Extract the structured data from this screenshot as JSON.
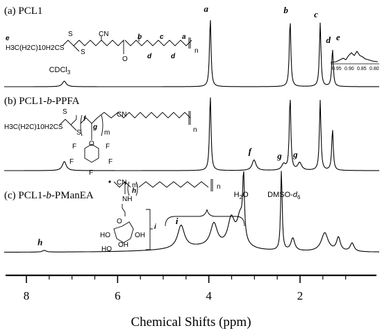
{
  "chart_data": {
    "type": "line",
    "title": "",
    "xlabel": "Chemical Shifts (ppm)",
    "ylabel": "",
    "xlim": [
      8.5,
      0.6
    ],
    "x_reversed": true,
    "x_ticks": [
      "8",
      "6",
      "4",
      "2"
    ],
    "x_tick_values": [
      8,
      6,
      4,
      2
    ],
    "grid": false,
    "panels": [
      {
        "label_parts": [
          "(a) PCL1",
          "",
          ""
        ],
        "structure_text": {
          "chain_end": "H3C(H2C)10H2CS",
          "cn": "CN",
          "s1": "S",
          "s2": "S",
          "o": "O",
          "n": "n",
          "labels": [
            "e",
            "b",
            "c",
            "a",
            "d",
            "d"
          ]
        },
        "peaks": [
          {
            "label": "a",
            "shift": 4.06,
            "height": 1.0
          },
          {
            "label": "b",
            "shift": 2.31,
            "height": 0.98
          },
          {
            "label": "c",
            "shift": 1.65,
            "height": 0.92
          },
          {
            "label": "d",
            "shift": 1.38,
            "height": 0.55
          },
          {
            "label": "",
            "shift": 7.26,
            "height": 0.08
          }
        ],
        "annotations": [
          {
            "text": "CDCl3",
            "shift": 7.26
          }
        ],
        "inset": {
          "label": "e",
          "ticks": [
            "0.95",
            "0.90",
            "0.85",
            "0.80"
          ]
        }
      },
      {
        "label_parts": [
          "(b) PCL1-",
          "b",
          "-PPFA"
        ],
        "structure_text": {
          "chain_end": "H3C(H2C)10H2CS",
          "cn": "CN",
          "s1": "S",
          "s2": "S",
          "o": "O",
          "f_sub": [
            "F",
            "F",
            "F",
            "F",
            "F"
          ],
          "m": "m",
          "n": "n",
          "labels": [
            "f",
            "g"
          ]
        },
        "peaks": [
          {
            "label": "",
            "shift": 4.06,
            "height": 1.0
          },
          {
            "label": "",
            "shift": 2.31,
            "height": 0.98
          },
          {
            "label": "",
            "shift": 1.65,
            "height": 0.92
          },
          {
            "label": "",
            "shift": 1.38,
            "height": 0.55
          },
          {
            "label": "f",
            "shift": 3.1,
            "height": 0.14
          },
          {
            "label": "g",
            "shift": 2.45,
            "height": 0.08
          },
          {
            "label": "g",
            "shift": 2.1,
            "height": 0.1
          },
          {
            "label": "",
            "shift": 7.26,
            "height": 0.12
          }
        ]
      },
      {
        "label_parts": [
          "(c) PCL1-",
          "b",
          "-PManEA"
        ],
        "structure_text": {
          "cn": "CN",
          "nh": "NH",
          "o_ring": "O",
          "oh": [
            "OH",
            "HO",
            "HO",
            "OH"
          ],
          "m": "m",
          "n": "n",
          "labels": [
            "h",
            "i"
          ]
        },
        "peaks": [
          {
            "label": "h",
            "shift": 7.7,
            "height": 0.02
          },
          {
            "label": "i",
            "shift": 4.7,
            "height": 0.27
          },
          {
            "label": "",
            "shift": 3.98,
            "height": 0.27
          },
          {
            "label": "",
            "shift": 3.6,
            "height": 0.32
          },
          {
            "label": "",
            "shift": 3.4,
            "height": 0.36
          },
          {
            "label": "H2O",
            "shift": 3.33,
            "height": 0.72
          },
          {
            "label": "DMSO-d6",
            "shift": 2.5,
            "height": 0.95
          },
          {
            "label": "",
            "shift": 2.25,
            "height": 0.15
          },
          {
            "label": "",
            "shift": 1.55,
            "height": 0.22
          },
          {
            "label": "",
            "shift": 1.25,
            "height": 0.16
          },
          {
            "label": "",
            "shift": 0.95,
            "height": 0.1
          }
        ]
      }
    ]
  }
}
